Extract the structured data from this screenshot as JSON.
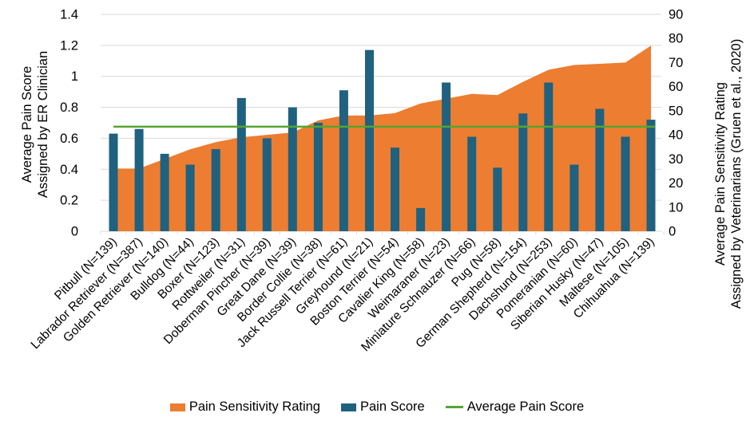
{
  "chart_data": {
    "type": "combo",
    "title": "",
    "categories": [
      "Pitbull (N=139)",
      "Labrador Retriever (N=387)",
      "Golden Retriever (N=140)",
      "Bulldog (N=44)",
      "Boxer (N=123)",
      "Rottweiler (N=31)",
      "Doberman Pincher (N=39)",
      "Great Dane (N=39)",
      "Border Collie (N=38)",
      "Jack Russell Terrier (N=61)",
      "Greyhound (N=21)",
      "Boston Terrier (N=54)",
      "Cavalier King (N=58)",
      "Weimaraner (N=23)",
      "Miniature Schnauzer (N=66)",
      "Pug (N=58)",
      "German Shepherd (N=154)",
      "Dachshund (N=253)",
      "Pomeranian (N=60)",
      "Siberian Husky (N=47)",
      "Maltese (N=105)",
      "Chihuahua (N=139)"
    ],
    "series": [
      {
        "name": "Pain Sensitivity Rating",
        "render": "area",
        "axis": "right",
        "color": "#ED7D31",
        "values": [
          26,
          26,
          30,
          34,
          37,
          39,
          40,
          41,
          46,
          48,
          48,
          49,
          53,
          55,
          57,
          56.5,
          62,
          67,
          69,
          69.5,
          70,
          77
        ]
      },
      {
        "name": "Pain Score",
        "render": "bar",
        "axis": "left",
        "color": "#1F617E",
        "values": [
          0.63,
          0.66,
          0.5,
          0.43,
          0.53,
          0.86,
          0.6,
          0.8,
          0.7,
          0.91,
          1.17,
          0.54,
          0.15,
          0.96,
          0.61,
          0.41,
          0.76,
          0.96,
          0.43,
          0.79,
          0.61,
          0.72
        ]
      },
      {
        "name": "Average Pain Score",
        "render": "line",
        "axis": "left",
        "color": "#55A532",
        "value": 0.675
      }
    ],
    "left_axis": {
      "title_line1": "Average Pain Score",
      "title_line2": "Assigned by ER Clinician",
      "min": 0,
      "max": 1.4,
      "ticks": [
        "1.4",
        "1.2",
        "1",
        "0.8",
        "0.6",
        "0.4",
        "0.2",
        "0"
      ]
    },
    "right_axis": {
      "title_line1": "Average Pain Sensitivity Rating",
      "title_line2": "Assigned by Veterinarians (Gruen et al., 2020)",
      "min": 0,
      "max": 90,
      "ticks": [
        "90",
        "80",
        "70",
        "60",
        "50",
        "40",
        "30",
        "20",
        "10",
        "0"
      ]
    },
    "grid": true,
    "grid_color": "#D9D9D9",
    "legend_position": "bottom"
  },
  "legend": {
    "items": [
      {
        "label": "Pain Sensitivity Rating",
        "color": "#ED7D31",
        "shape": "rect"
      },
      {
        "label": "Pain Score",
        "color": "#1F617E",
        "shape": "rect"
      },
      {
        "label": "Average Pain Score",
        "color": "#55A532",
        "shape": "line"
      }
    ]
  }
}
